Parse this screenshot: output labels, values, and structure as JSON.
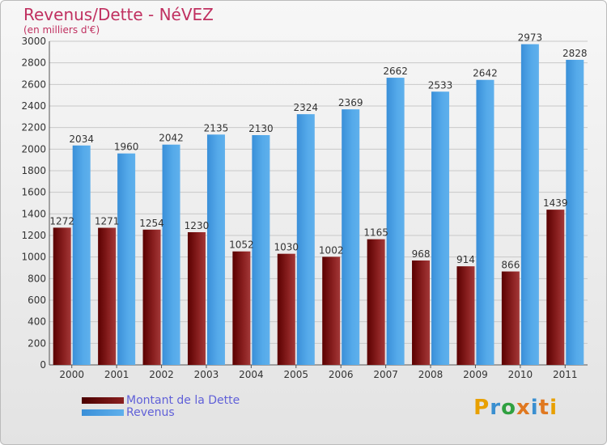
{
  "chart_data": {
    "type": "bar",
    "title": "Revenus/Dette - NéVEZ",
    "subtitle": "(en milliers d'€)",
    "categories": [
      "2000",
      "2001",
      "2002",
      "2003",
      "2004",
      "2005",
      "2006",
      "2007",
      "2008",
      "2009",
      "2010",
      "2011"
    ],
    "series": [
      {
        "name": "Montant de la Dette",
        "color": "#7a1010",
        "values": [
          1272,
          1271,
          1254,
          1230,
          1052,
          1030,
          1002,
          1165,
          968,
          914,
          866,
          1439
        ]
      },
      {
        "name": "Revenus",
        "color": "#4aa0e0",
        "values": [
          2034,
          1960,
          2042,
          2135,
          2130,
          2324,
          2369,
          2662,
          2533,
          2642,
          2973,
          2828
        ]
      }
    ],
    "ylim": [
      0,
      3000
    ],
    "yticks": [
      0,
      200,
      400,
      600,
      800,
      1000,
      1200,
      1400,
      1600,
      1800,
      2000,
      2200,
      2400,
      2600,
      2800,
      3000
    ],
    "grid": true,
    "legend_position": "bottom-left"
  },
  "branding": {
    "logo": "Proxiti"
  }
}
